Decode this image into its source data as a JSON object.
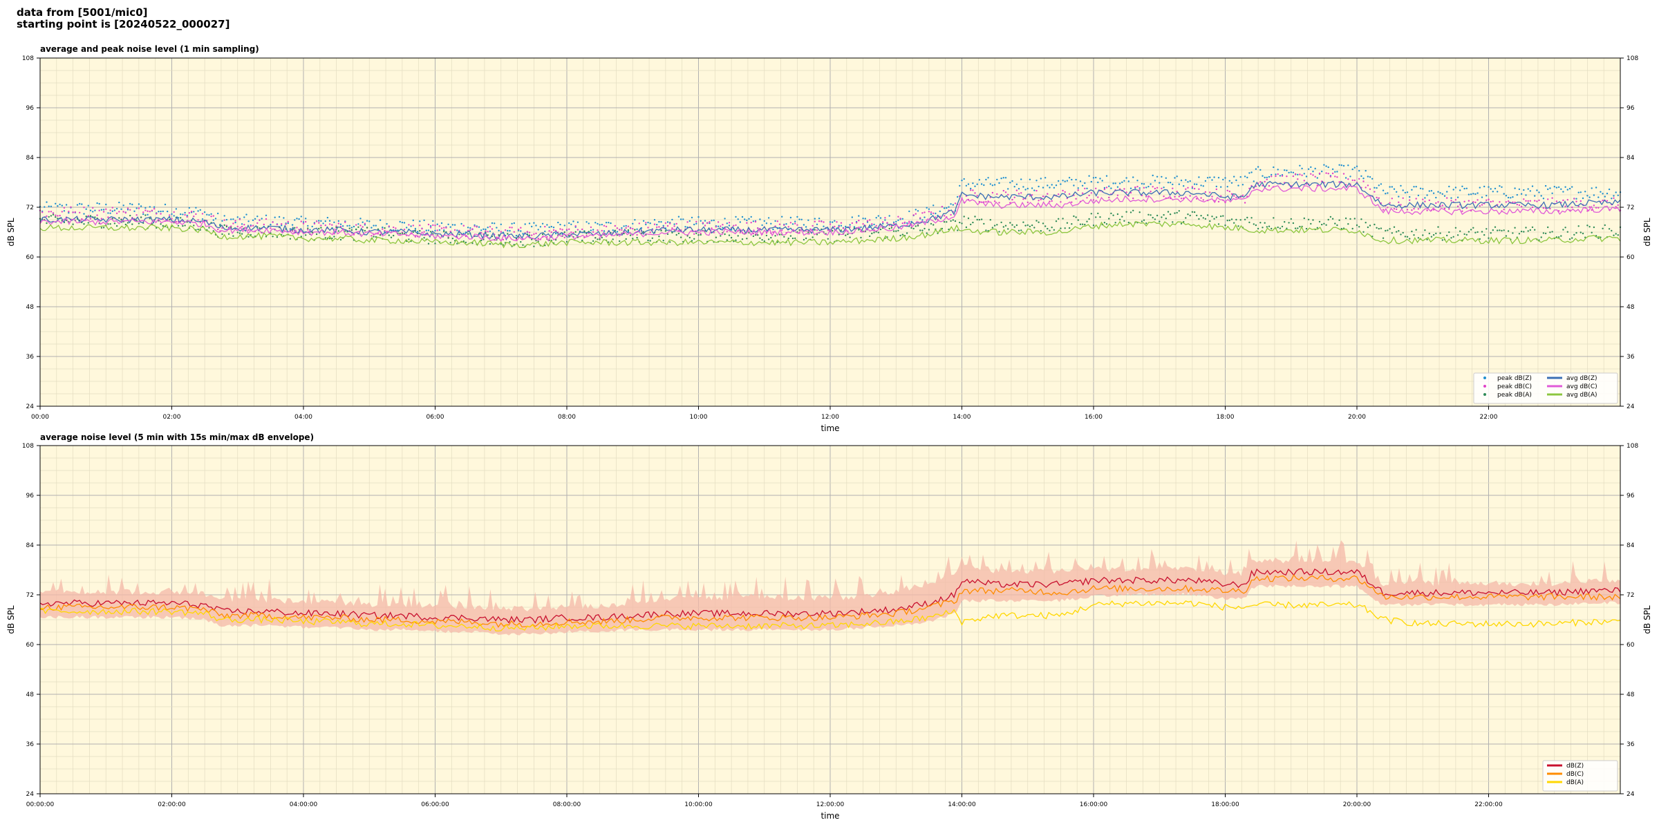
{
  "header": {
    "line1": "data from [5001/mic0]",
    "line2": "starting point is [20240522_000027]"
  },
  "colors": {
    "plot_background": "#fff8dc",
    "major_grid": "#b0b0b0",
    "minor_grid": "#e3dcc0",
    "peak_z": "#1f8fd0",
    "peak_c": "#e040c8",
    "peak_a": "#2e8b57",
    "avg_z": "#3b6fb5",
    "avg_c": "#e05ad8",
    "avg_a": "#8cc63f",
    "env_z": "#c8102e",
    "env_c": "#ff8c00",
    "env_a": "#ffd700",
    "envelope_band": "#f4b8a8"
  },
  "chart_data": [
    {
      "type": "line",
      "title": "average and peak noise level (1 min sampling)",
      "xlabel": "time",
      "ylabel": "dB SPL",
      "ylim": [
        24,
        108
      ],
      "yticks": [
        24,
        36,
        48,
        60,
        72,
        84,
        96,
        108
      ],
      "xlim_hours": [
        0,
        24
      ],
      "xticks": [
        "00:00",
        "02:00",
        "04:00",
        "06:00",
        "08:00",
        "10:00",
        "12:00",
        "14:00",
        "16:00",
        "18:00",
        "20:00",
        "22:00"
      ],
      "grid": true,
      "legend_position": "lower-right",
      "legend_columns": 2,
      "x_hours": [
        0,
        0.5,
        1,
        1.5,
        2,
        2.5,
        2.75,
        3,
        3.5,
        4,
        4.5,
        5,
        5.5,
        6,
        6.5,
        7,
        7.5,
        8,
        8.5,
        9,
        9.5,
        10,
        10.5,
        11,
        11.5,
        12,
        12.5,
        13,
        13.5,
        13.9,
        14,
        14.5,
        15,
        15.5,
        16,
        16.5,
        17,
        17.5,
        18,
        18.3,
        18.4,
        18.5,
        19,
        19.5,
        20,
        20.2,
        20.4,
        21,
        21.5,
        22,
        22.5,
        23,
        23.5,
        24
      ],
      "series": [
        {
          "name": "peak dB(Z)",
          "kind": "scatter",
          "color_key": "peak_z",
          "values": [
            71,
            71,
            71,
            71,
            70.5,
            70,
            68,
            68,
            68,
            67.5,
            67.5,
            67,
            67,
            66.5,
            66.5,
            66,
            66,
            66.5,
            66.5,
            67,
            67.5,
            67.5,
            67.5,
            67.5,
            67.5,
            67.5,
            68,
            68.5,
            70,
            72,
            77,
            77,
            77,
            77,
            77.5,
            77.5,
            77.5,
            77.5,
            77.5,
            77.5,
            79,
            79.5,
            80,
            80,
            80,
            78,
            75,
            75,
            75,
            75,
            75,
            75,
            75,
            75
          ]
        },
        {
          "name": "peak dB(C)",
          "kind": "scatter",
          "color_key": "peak_c",
          "values": [
            70,
            70,
            70,
            70,
            69.5,
            69,
            67,
            67,
            67,
            66.5,
            66.5,
            66,
            66,
            65.5,
            65.5,
            65,
            65,
            65.5,
            65.5,
            66,
            66.5,
            66.5,
            66.5,
            66.5,
            66.5,
            66.5,
            67,
            67.5,
            69,
            71,
            74,
            74,
            74,
            74,
            74.5,
            75,
            75,
            75,
            74,
            74,
            77,
            77.5,
            78,
            78,
            78,
            76,
            72,
            72,
            72,
            72,
            72,
            72,
            72,
            72
          ]
        },
        {
          "name": "peak dB(A)",
          "kind": "scatter",
          "color_key": "peak_a",
          "values": [
            68,
            68,
            68,
            68,
            67.5,
            67,
            65.5,
            65.5,
            65.5,
            65,
            65,
            65,
            64.5,
            64,
            64,
            63.5,
            63.5,
            64,
            64,
            64.5,
            64.5,
            64.5,
            64.5,
            64.5,
            64.5,
            64.5,
            65,
            65.5,
            66,
            67,
            68,
            67,
            67,
            67,
            68.5,
            69,
            69,
            69,
            68,
            68,
            68,
            67.5,
            67.5,
            67.5,
            67.5,
            66,
            65,
            65,
            65,
            65,
            65,
            65,
            65.5,
            65.5
          ]
        },
        {
          "name": "avg dB(Z)",
          "kind": "line",
          "color_key": "avg_z",
          "values": [
            69,
            69,
            69,
            69,
            69,
            68.5,
            67,
            67,
            67,
            66.5,
            66.5,
            66,
            66,
            65.5,
            65.5,
            65,
            65,
            65.5,
            65.5,
            66,
            66.5,
            66.5,
            66.5,
            66.5,
            66.5,
            66.5,
            67,
            67.5,
            69,
            71,
            75,
            74.5,
            74.5,
            74.5,
            75.5,
            75.5,
            75.5,
            75.5,
            74.5,
            74.5,
            77,
            77.5,
            77.5,
            77.5,
            77.5,
            75,
            72.5,
            72.5,
            72.5,
            72.5,
            72.5,
            72.5,
            73,
            73
          ]
        },
        {
          "name": "avg dB(C)",
          "kind": "line",
          "color_key": "avg_c",
          "values": [
            68.5,
            68.5,
            68.5,
            68.5,
            68.5,
            68,
            66.5,
            66.5,
            66.5,
            66,
            66,
            65.5,
            65.5,
            65,
            65,
            64.5,
            64.5,
            65,
            65,
            65.5,
            66,
            66,
            66,
            66,
            66,
            66,
            66.5,
            67,
            68.5,
            70,
            73.5,
            72.5,
            72.5,
            72.5,
            73.5,
            74,
            74,
            74,
            73.5,
            73.5,
            76,
            76.5,
            76.5,
            76.5,
            76.5,
            74,
            71,
            71,
            71,
            71,
            71,
            71,
            71.5,
            71.5
          ]
        },
        {
          "name": "avg dB(A)",
          "kind": "line",
          "color_key": "avg_a",
          "values": [
            67,
            67,
            67,
            67,
            67,
            66.5,
            65,
            65,
            65,
            64.5,
            64.5,
            64,
            64,
            63.5,
            63.5,
            63,
            63,
            63.5,
            63.5,
            63.5,
            63.5,
            63.5,
            63.5,
            63.5,
            63.5,
            63.5,
            64,
            64.5,
            65.5,
            67,
            66.5,
            66,
            66,
            66,
            67.5,
            68,
            68,
            68,
            67,
            67,
            66.5,
            66.5,
            66.5,
            66.5,
            66.5,
            65,
            64,
            64,
            64,
            64,
            64,
            64,
            64.5,
            64.5
          ]
        }
      ]
    },
    {
      "type": "line",
      "title": "average noise level (5 min with 15s min/max dB envelope)",
      "xlabel": "time",
      "ylabel": "dB SPL",
      "ylim": [
        24,
        108
      ],
      "yticks": [
        24,
        36,
        48,
        60,
        72,
        84,
        96,
        108
      ],
      "xlim_hours": [
        0,
        24
      ],
      "xticks": [
        "00:00:00",
        "02:00:00",
        "04:00:00",
        "06:00:00",
        "08:00:00",
        "10:00:00",
        "12:00:00",
        "14:00:00",
        "16:00:00",
        "18:00:00",
        "20:00:00",
        "22:00:00"
      ],
      "grid": true,
      "legend_position": "lower-right",
      "legend_columns": 1,
      "x_hours": [
        0,
        0.5,
        1,
        1.5,
        2,
        2.5,
        2.75,
        3,
        3.5,
        4,
        4.5,
        5,
        5.5,
        6,
        6.5,
        7,
        7.5,
        8,
        8.5,
        9,
        9.5,
        10,
        10.5,
        11,
        11.5,
        12,
        12.5,
        13,
        13.5,
        13.9,
        14,
        14.5,
        15,
        15.5,
        16,
        16.5,
        17,
        17.5,
        18,
        18.3,
        18.4,
        18.5,
        19,
        19.5,
        20,
        20.2,
        20.4,
        21,
        21.5,
        22,
        22.5,
        23,
        23.5,
        24
      ],
      "envelope_max": [
        72,
        72,
        72,
        72,
        72,
        71.5,
        70,
        70,
        70,
        69.5,
        69.5,
        69,
        69,
        68.5,
        68.5,
        68,
        68,
        68.5,
        68.5,
        69.5,
        70.5,
        70.5,
        70.5,
        70.5,
        70.5,
        70.5,
        71,
        72,
        74,
        76,
        79,
        77,
        77,
        77,
        77.5,
        77.5,
        77.5,
        77.5,
        76.5,
        76.5,
        79,
        79.5,
        79.5,
        79.5,
        79.5,
        77,
        74,
        74,
        74,
        74,
        74,
        74,
        74.5,
        74.5
      ],
      "envelope_min": [
        67,
        67,
        67,
        67,
        67,
        66.5,
        65,
        65,
        65,
        64.5,
        64.5,
        64,
        64,
        63.5,
        63.5,
        63,
        63,
        63.5,
        63.5,
        64,
        64,
        64,
        64,
        64,
        64,
        64,
        64.5,
        65,
        66,
        68,
        71,
        71,
        71,
        71,
        72,
        72.5,
        72.5,
        72.5,
        71.5,
        71.5,
        74,
        74.5,
        74.5,
        74.5,
        74.5,
        72,
        70,
        70,
        70,
        70,
        70,
        70,
        70.5,
        70.5
      ],
      "series": [
        {
          "name": "dB(Z)",
          "kind": "line",
          "color_key": "env_z",
          "values": [
            70,
            70,
            70,
            70,
            70,
            69.5,
            68,
            68,
            68,
            67.5,
            67.5,
            67,
            67,
            66.5,
            66.5,
            66,
            66,
            66.5,
            66.5,
            67,
            67.5,
            67.5,
            67.5,
            67.5,
            67.5,
            67.5,
            68,
            68.5,
            70,
            72,
            75.5,
            74.5,
            74.5,
            74.5,
            75.5,
            75.5,
            75.5,
            75.5,
            74.5,
            74.5,
            77,
            77.5,
            77.5,
            77.5,
            77.5,
            75,
            72.5,
            72.5,
            72.5,
            72.5,
            72.5,
            72.5,
            73,
            73
          ]
        },
        {
          "name": "dB(C)",
          "kind": "line",
          "color_key": "env_c",
          "values": [
            69,
            69,
            69,
            69,
            69,
            68.5,
            67,
            67,
            67,
            66.5,
            66.5,
            66,
            66,
            65.5,
            65.5,
            65,
            65,
            65.5,
            65.5,
            66,
            66.5,
            66.5,
            66.5,
            66.5,
            66.5,
            66.5,
            67,
            67.5,
            69,
            70.5,
            73,
            73,
            73,
            72.5,
            73.5,
            73.5,
            73.5,
            73.5,
            73,
            73,
            75.5,
            76,
            76,
            76,
            76,
            74,
            71.5,
            71.5,
            71.5,
            71.5,
            71.5,
            71.5,
            71.5,
            71.5
          ]
        },
        {
          "name": "dB(A)",
          "kind": "line",
          "color_key": "env_a",
          "values": [
            68,
            68,
            68,
            68,
            68,
            67.5,
            66,
            66,
            66,
            65.5,
            65.5,
            65,
            65,
            64.5,
            64.5,
            64,
            64,
            64.5,
            64.5,
            64.5,
            64.5,
            64.5,
            64.5,
            64.5,
            64.5,
            64.5,
            65,
            65.5,
            66.5,
            68,
            65.5,
            67,
            67,
            67,
            69.5,
            70,
            70,
            70,
            69,
            69,
            69.5,
            69.5,
            69.5,
            69.5,
            69.5,
            68,
            66,
            65,
            65,
            65,
            65,
            65,
            65.5,
            65.5
          ]
        }
      ]
    }
  ]
}
